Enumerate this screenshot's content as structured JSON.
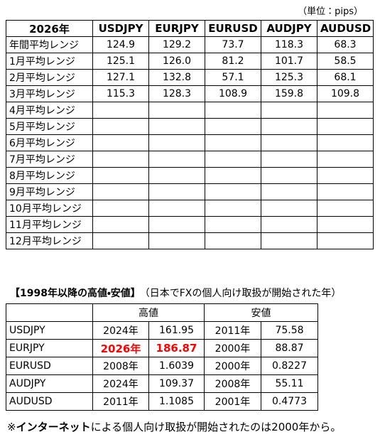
{
  "unit_note": "（単位：pips）",
  "range_table": {
    "header": [
      "2026年",
      "USDJPY",
      "EURJPY",
      "EURUSD",
      "AUDJPY",
      "AUDUSD"
    ],
    "rows": [
      {
        "label": "年間平均レンジ",
        "values": [
          "124.9",
          "129.2",
          "73.7",
          "118.3",
          "68.3"
        ]
      },
      {
        "label": "1月平均レンジ",
        "values": [
          "125.1",
          "126.0",
          "81.2",
          "101.7",
          "58.5"
        ]
      },
      {
        "label": "2月平均レンジ",
        "values": [
          "127.1",
          "132.8",
          "57.1",
          "125.3",
          "68.1"
        ]
      },
      {
        "label": "3月平均レンジ",
        "values": [
          "115.3",
          "128.3",
          "108.9",
          "159.8",
          "109.8"
        ]
      },
      {
        "label": "4月平均レンジ",
        "values": []
      },
      {
        "label": "5月平均レンジ",
        "values": []
      },
      {
        "label": "6月平均レンジ",
        "values": []
      },
      {
        "label": "7月平均レンジ",
        "values": []
      },
      {
        "label": "8月平均レンジ",
        "values": []
      },
      {
        "label": "9月平均レンジ",
        "values": []
      },
      {
        "label": "10月平均レンジ",
        "values": []
      },
      {
        "label": "11月平均レンジ",
        "values": []
      },
      {
        "label": "12月平均レンジ",
        "values": []
      }
    ]
  },
  "extremes": {
    "title": "【1998年以降の高値・安値】",
    "subtitle": "（日本でFXの個人向け取扱が開始された年）",
    "header": [
      "高値",
      "安値"
    ],
    "rows": [
      [
        "USDJPY",
        "2024年",
        "161.95",
        "2011年",
        "75.58"
      ],
      [
        "EURJPY",
        "2026年",
        "186.87",
        "2000年",
        "88.87"
      ],
      [
        "EURUSD",
        "2008年",
        "1.6039",
        "2000年",
        "0.8227"
      ],
      [
        "AUDJPY",
        "2024年",
        "109.37",
        "2008年",
        "55.11"
      ],
      [
        "AUDUSD",
        "2011年",
        "1.1085",
        "2001年",
        "0.4773"
      ]
    ]
  },
  "footnote": [
    "※",
    "インターネット",
    "による個人向け取扱が開始されたのは2000年から。"
  ]
}
